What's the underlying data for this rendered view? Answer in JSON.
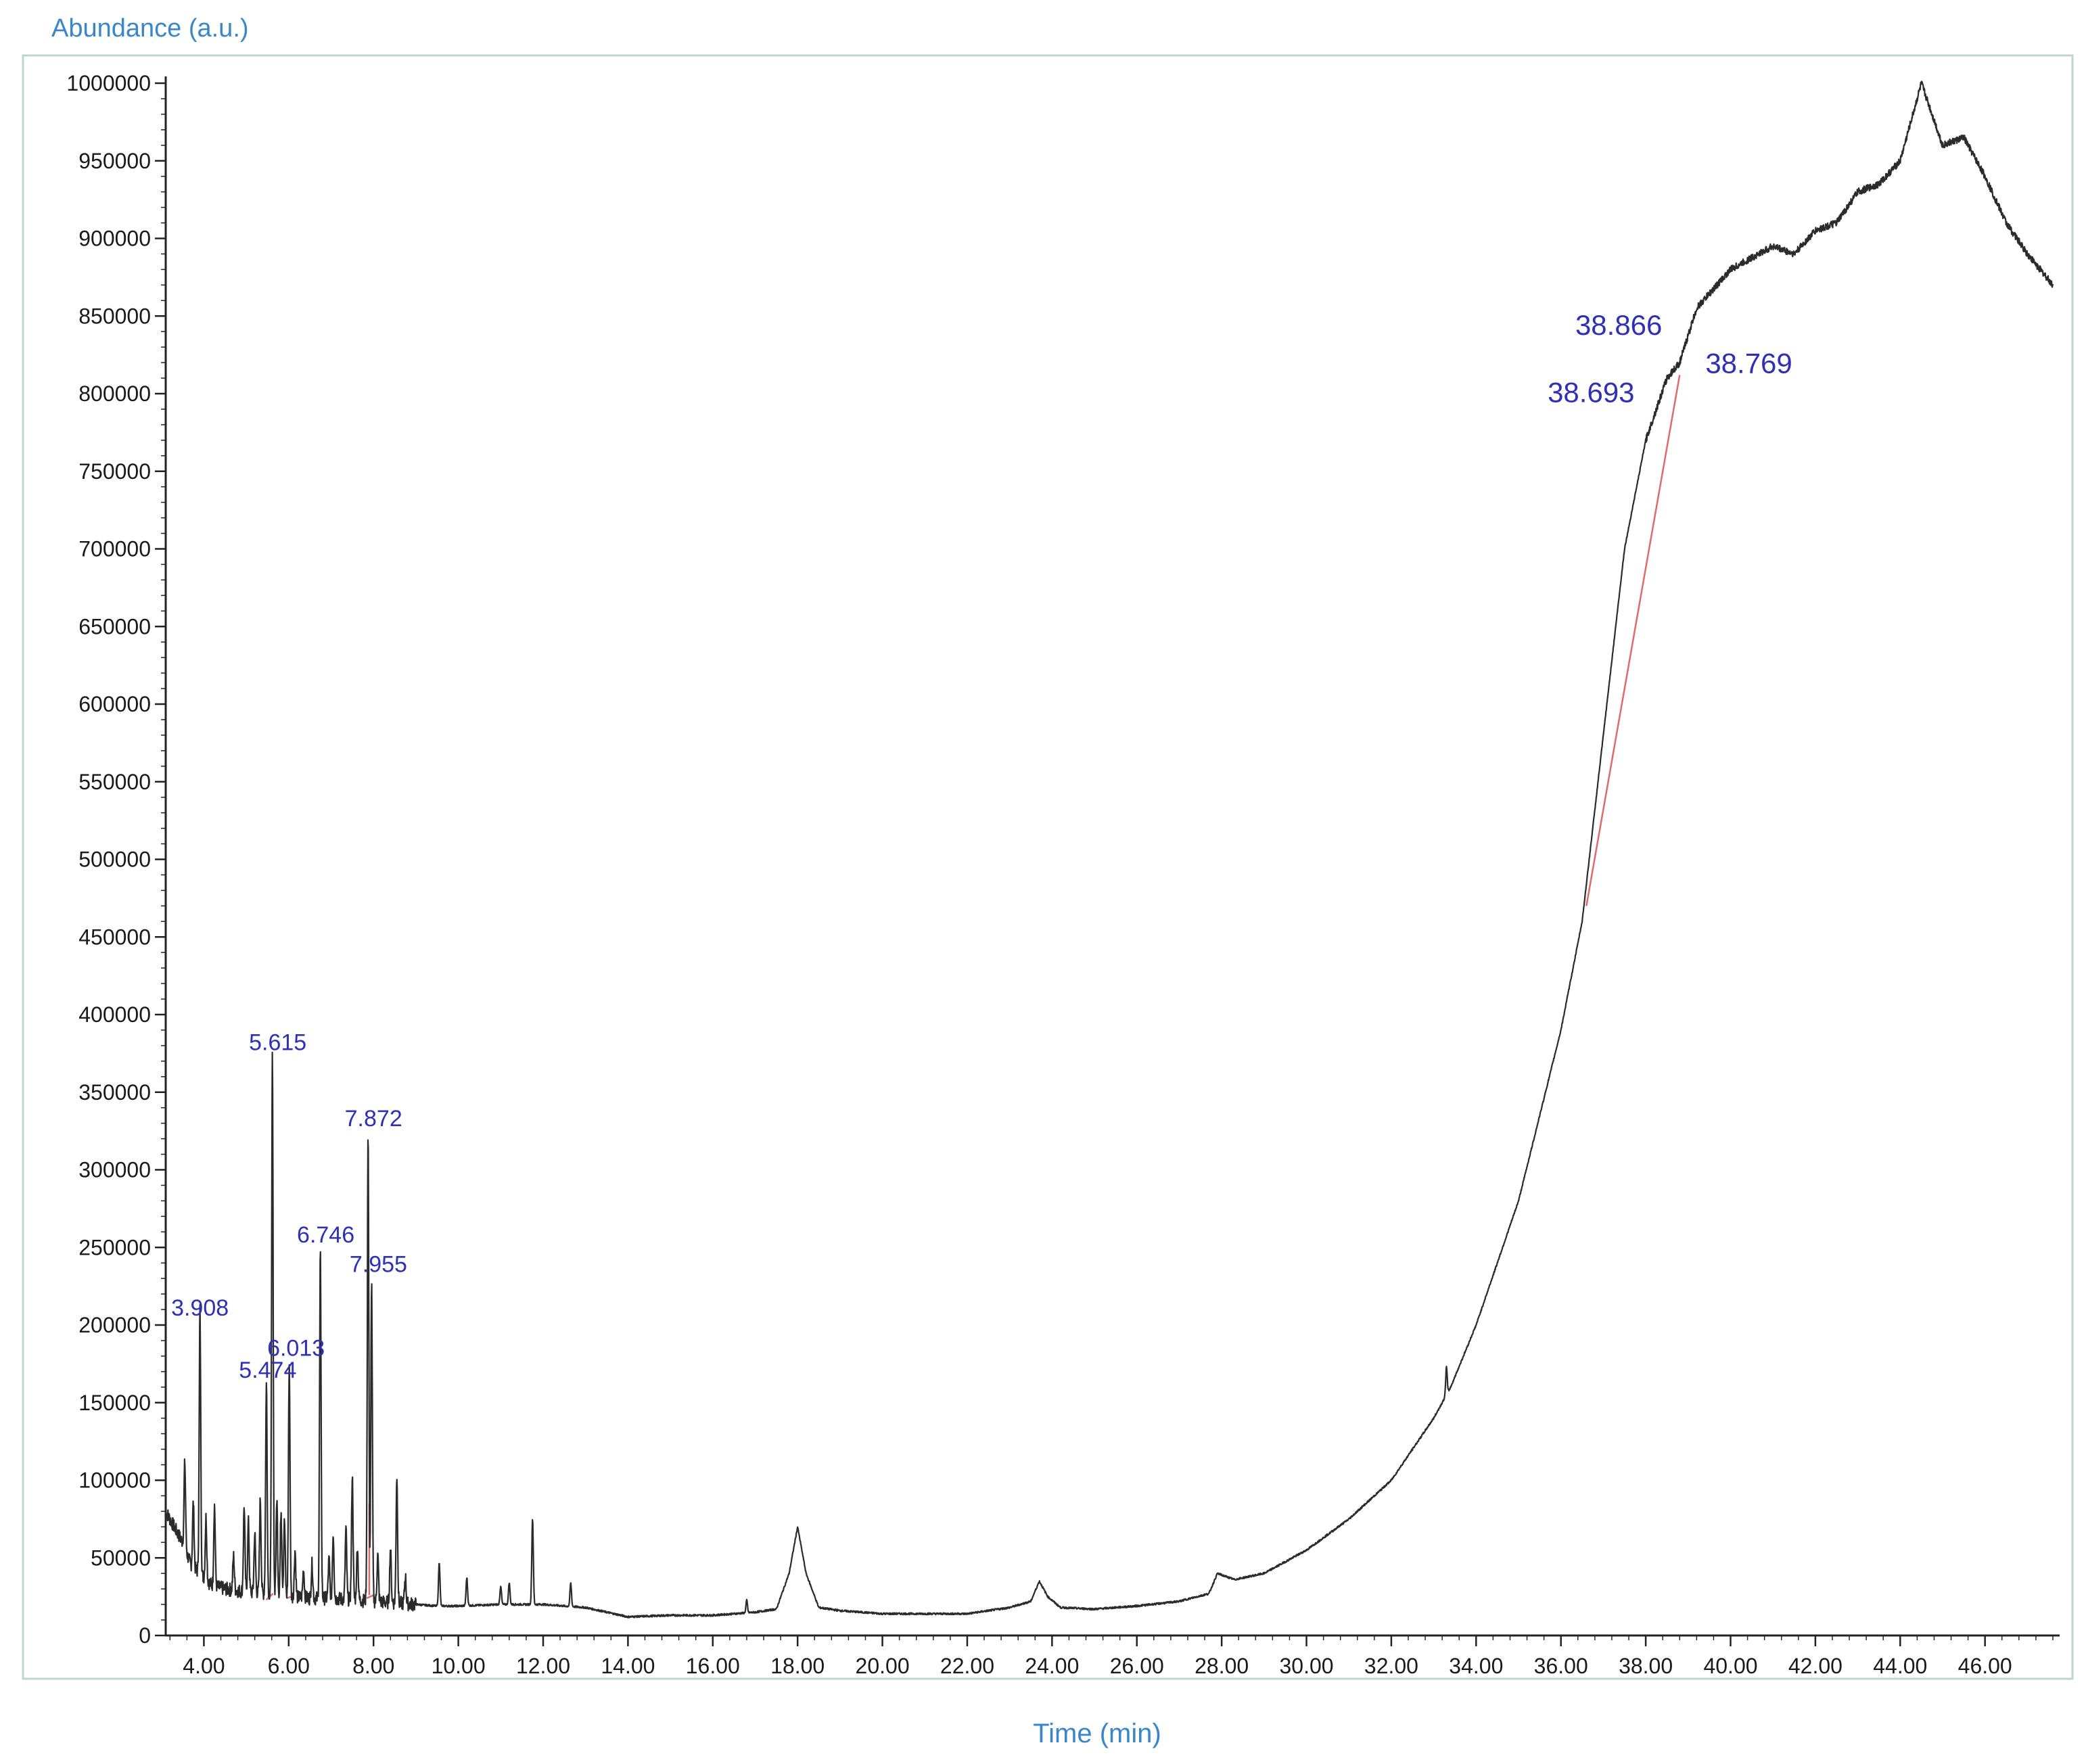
{
  "chart_data": {
    "type": "line",
    "title": "",
    "xlabel": "Time (min)",
    "ylabel": "Abundance (a.u.)",
    "xlim": [
      3.1,
      47.6
    ],
    "ylim": [
      0,
      1000000
    ],
    "x_ticks": [
      "4.00",
      "6.00",
      "8.00",
      "10.00",
      "12.00",
      "14.00",
      "16.00",
      "18.00",
      "20.00",
      "22.00",
      "24.00",
      "26.00",
      "28.00",
      "30.00",
      "32.00",
      "34.00",
      "36.00",
      "38.00",
      "40.00",
      "42.00",
      "44.00",
      "46.00"
    ],
    "y_ticks": [
      "50000",
      "100000",
      "150000",
      "200000",
      "250000",
      "300000",
      "350000",
      "400000",
      "450000",
      "500000",
      "550000",
      "600000",
      "650000",
      "700000",
      "750000",
      "800000",
      "850000",
      "900000",
      "950000",
      "1000000"
    ],
    "colors": {
      "trace": "#2b2b2b",
      "integration": "#e06a6a",
      "annotation": "#2f2fb8",
      "axis_title": "#3a86c8",
      "frame": "#bcd7c9"
    },
    "series": [
      {
        "x": [
          3.1,
          3.3,
          3.5,
          3.7,
          3.9,
          4.2,
          4.5,
          5.0,
          5.5,
          6.0,
          6.5,
          7.0,
          7.5,
          8.0,
          8.5,
          9.0,
          9.5,
          10.0,
          11.0,
          12.0,
          13.0,
          14.0,
          15.0,
          16.0,
          17.0,
          17.5,
          17.8,
          18.0,
          18.2,
          18.5,
          19.0,
          20.0,
          21.0,
          22.0,
          23.0,
          23.5,
          23.7,
          23.9,
          24.2,
          25.0,
          26.0,
          27.0,
          27.7,
          27.9,
          28.3,
          29.0,
          30.0,
          31.0,
          32.0,
          33.0,
          33.4,
          34.0,
          35.0,
          36.0,
          36.5,
          37.0,
          37.5,
          38.0,
          38.5,
          38.8,
          39.2,
          40.0,
          41.0,
          41.5,
          42.0,
          42.5,
          43.0,
          43.5,
          44.0,
          44.5,
          45.0,
          45.5,
          46.0,
          46.5,
          47.0,
          47.6
        ],
        "y": [
          80000,
          70000,
          60000,
          45000,
          40000,
          32000,
          30000,
          28000,
          27000,
          25000,
          24000,
          24000,
          23000,
          22000,
          21000,
          20000,
          19000,
          19000,
          20000,
          20000,
          18000,
          12000,
          13000,
          13000,
          15000,
          17000,
          40000,
          70000,
          40000,
          18000,
          16000,
          14000,
          14000,
          14000,
          18000,
          22000,
          35000,
          25000,
          18000,
          17000,
          19000,
          22000,
          27000,
          40000,
          36000,
          40000,
          55000,
          75000,
          100000,
          140000,
          160000,
          200000,
          280000,
          390000,
          460000,
          580000,
          700000,
          770000,
          810000,
          820000,
          855000,
          880000,
          895000,
          890000,
          905000,
          910000,
          930000,
          935000,
          950000,
          1000000,
          960000,
          965000,
          940000,
          910000,
          890000,
          870000
        ]
      }
    ],
    "peaks": [
      {
        "label": "3.908",
        "x": 3.908,
        "y": 200000
      },
      {
        "label": "5.474",
        "x": 5.474,
        "y": 160000
      },
      {
        "label": "5.615",
        "x": 5.615,
        "y": 372000
      },
      {
        "label": "6.013",
        "x": 6.013,
        "y": 175000
      },
      {
        "label": "6.746",
        "x": 6.746,
        "y": 247000
      },
      {
        "label": "7.872",
        "x": 7.872,
        "y": 322000
      },
      {
        "label": "7.955",
        "x": 7.955,
        "y": 228000
      },
      {
        "label": "38.693",
        "x": 38.693,
        "y": 812000
      },
      {
        "label": "38.769",
        "x": 38.769,
        "y": 822000
      },
      {
        "label": "38.866",
        "x": 38.866,
        "y": 830000
      }
    ]
  }
}
